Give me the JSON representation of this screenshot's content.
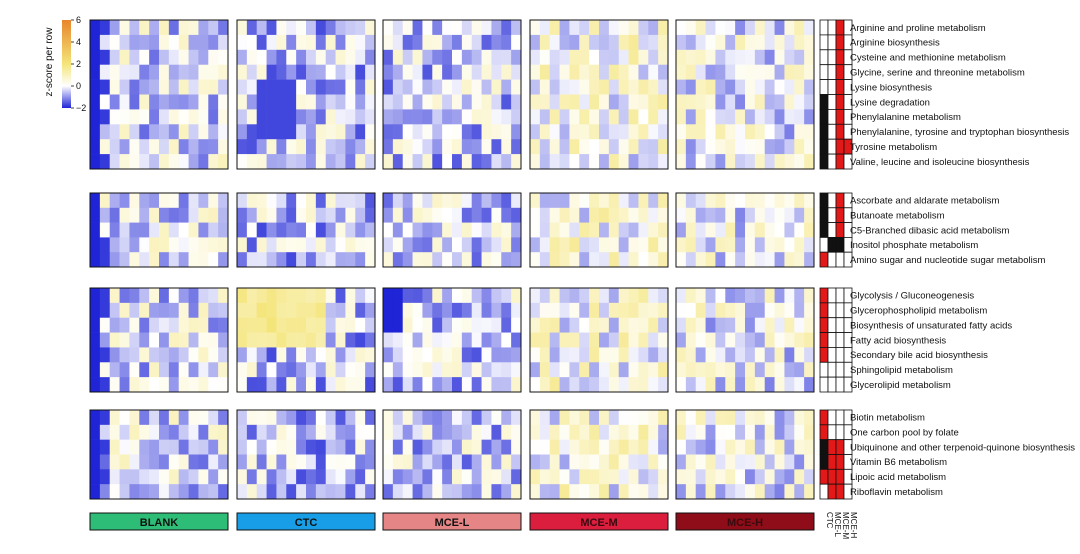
{
  "chart_data": {
    "type": "heatmap",
    "colorbar": {
      "title": "z-score per row",
      "ticks": [
        6,
        4,
        2,
        0,
        -2
      ],
      "range": [
        -2,
        6
      ],
      "colors": [
        "#1f25d6",
        "#ffffff",
        "#f4e57a",
        "#e8862a"
      ]
    },
    "groups": [
      {
        "name": "BLANK",
        "color": "#2dbd77"
      },
      {
        "name": "CTC",
        "color": "#189ee6"
      },
      {
        "name": "MCE-L",
        "color": "#e58585"
      },
      {
        "name": "MCE-M",
        "color": "#db1e3e"
      },
      {
        "name": "MCE-H",
        "color": "#8e0d18"
      }
    ],
    "annotation_columns": [
      "CTC",
      "MCE-L",
      "MCE-M",
      "MCE-H"
    ],
    "annotation_colors": {
      "0": "#ffffff",
      "1": "#111111",
      "2": "#e31818"
    },
    "blocks": [
      {
        "pathways": [
          {
            "name": "Arginine and proline metabolism",
            "annot": [
              0,
              0,
              2,
              0
            ]
          },
          {
            "name": "Arginine biosynthesis",
            "annot": [
              0,
              0,
              2,
              0
            ]
          },
          {
            "name": "Cysteine and methionine metabolism",
            "annot": [
              0,
              0,
              2,
              0
            ]
          },
          {
            "name": "Glycine, serine and threonine metabolism",
            "annot": [
              0,
              0,
              2,
              0
            ]
          },
          {
            "name": "Lysine biosynthesis",
            "annot": [
              0,
              0,
              2,
              0
            ]
          },
          {
            "name": "Lysine degradation",
            "annot": [
              1,
              0,
              2,
              0
            ]
          },
          {
            "name": "Phenylalanine metabolism",
            "annot": [
              1,
              0,
              2,
              0
            ]
          },
          {
            "name": "Phenylalanine, tyrosine and tryptophan biosynthesis",
            "annot": [
              1,
              0,
              2,
              0
            ]
          },
          {
            "name": "Tyrosine metabolism",
            "annot": [
              1,
              0,
              2,
              2
            ]
          },
          {
            "name": "Valine, leucine and isoleucine biosynthesis",
            "annot": [
              1,
              0,
              2,
              0
            ]
          }
        ]
      },
      {
        "pathways": [
          {
            "name": "Ascorbate and aldarate metabolism",
            "annot": [
              1,
              0,
              2,
              0
            ]
          },
          {
            "name": "Butanoate metabolism",
            "annot": [
              1,
              0,
              2,
              0
            ]
          },
          {
            "name": "C5-Branched dibasic acid metabolism",
            "annot": [
              1,
              0,
              2,
              0
            ]
          },
          {
            "name": "Inositol phosphate metabolism",
            "annot": [
              0,
              1,
              1,
              0
            ]
          },
          {
            "name": "Amino sugar and nucleotide sugar metabolism",
            "annot": [
              2,
              0,
              0,
              0
            ]
          }
        ]
      },
      {
        "pathways": [
          {
            "name": "Glycolysis / Gluconeogenesis",
            "annot": [
              2,
              0,
              0,
              0
            ]
          },
          {
            "name": "Glycerophospholipid metabolism",
            "annot": [
              2,
              0,
              0,
              0
            ]
          },
          {
            "name": "Biosynthesis of unsaturated fatty acids",
            "annot": [
              2,
              0,
              0,
              0
            ]
          },
          {
            "name": "Fatty acid biosynthesis",
            "annot": [
              2,
              0,
              0,
              0
            ]
          },
          {
            "name": "Secondary bile acid biosynthesis",
            "annot": [
              2,
              0,
              0,
              0
            ]
          },
          {
            "name": "Sphingolipid metabolism",
            "annot": [
              0,
              0,
              0,
              0
            ]
          },
          {
            "name": "Glycerolipid metabolism",
            "annot": [
              0,
              0,
              0,
              0
            ]
          }
        ]
      },
      {
        "pathways": [
          {
            "name": "Biotin metabolism",
            "annot": [
              2,
              0,
              0,
              0
            ]
          },
          {
            "name": "One carbon pool by folate",
            "annot": [
              2,
              0,
              0,
              0
            ]
          },
          {
            "name": "Ubiquinone and other terpenoid-quinone biosynthesis",
            "annot": [
              1,
              2,
              2,
              0
            ]
          },
          {
            "name": "Vitamin B6 metabolism",
            "annot": [
              1,
              2,
              2,
              0
            ]
          },
          {
            "name": "Lipoic acid metabolism",
            "annot": [
              2,
              2,
              2,
              0
            ]
          },
          {
            "name": "Riboflavin metabolism",
            "annot": [
              0,
              2,
              2,
              0
            ]
          }
        ]
      }
    ],
    "cells_note": "",
    "samples_per_group": 14
  }
}
